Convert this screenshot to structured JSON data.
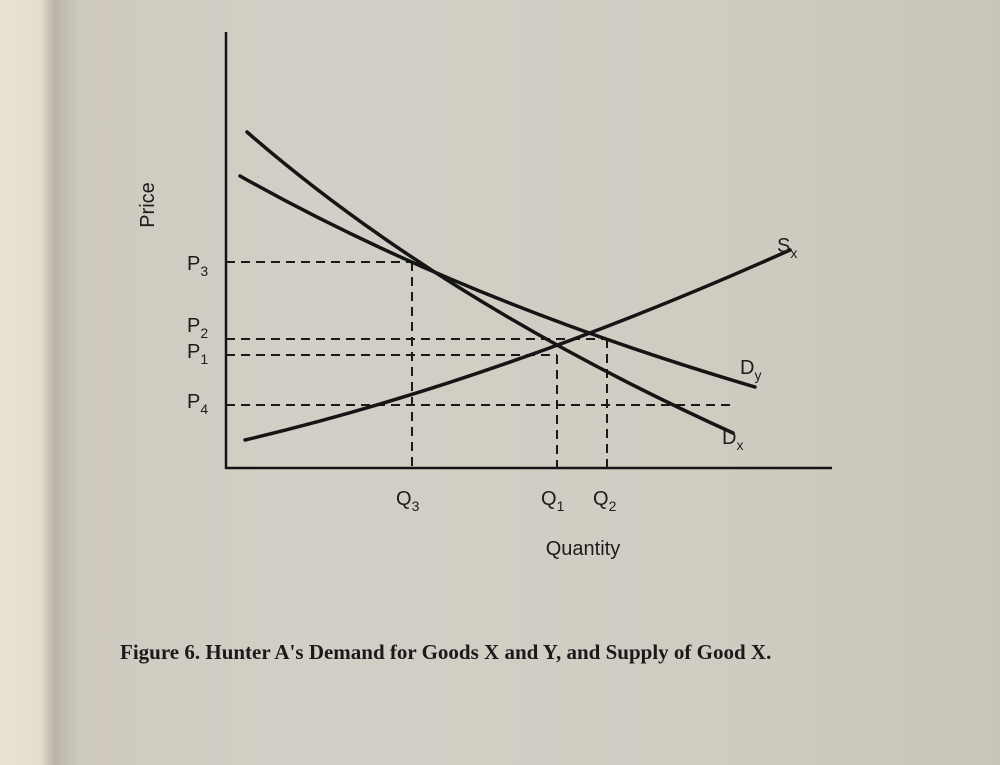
{
  "figure": {
    "caption": "Figure 6.  Hunter A's Demand for Goods X and Y, and Supply of Good X.",
    "y_axis_label": "Price",
    "x_axis_label": "Quantity",
    "price_labels": [
      {
        "base": "P",
        "sub": "3"
      },
      {
        "base": "P",
        "sub": "2"
      },
      {
        "base": "P",
        "sub": "1"
      },
      {
        "base": "P",
        "sub": "4"
      }
    ],
    "quantity_labels": [
      {
        "base": "Q",
        "sub": "3"
      },
      {
        "base": "Q",
        "sub": "1"
      },
      {
        "base": "Q",
        "sub": "2"
      }
    ],
    "curves": [
      {
        "base": "S",
        "sub": "x"
      },
      {
        "base": "D",
        "sub": "y"
      },
      {
        "base": "D",
        "sub": "x"
      }
    ]
  }
}
